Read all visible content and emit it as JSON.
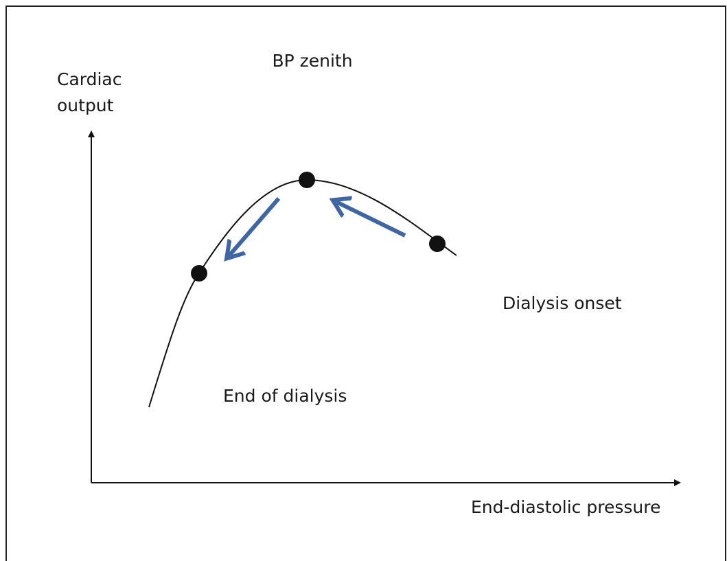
{
  "y_axis": {
    "label_lines": [
      "Cardiac",
      "output"
    ]
  },
  "x_axis": {
    "label": "End-diastolic pressure"
  },
  "annotations": {
    "zenith": "BP zenith",
    "onset": "Dialysis onset",
    "end": "End of dialysis"
  }
}
